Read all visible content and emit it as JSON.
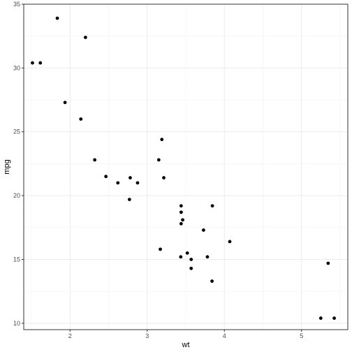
{
  "chart_data": {
    "type": "scatter",
    "title": "",
    "xlabel": "wt",
    "ylabel": "mpg",
    "xlim": [
      1.4,
      5.6
    ],
    "ylim": [
      9.5,
      35.0
    ],
    "x_ticks": [
      2,
      3,
      4,
      5
    ],
    "y_ticks": [
      10,
      15,
      20,
      25,
      30,
      35
    ],
    "grid": true,
    "legend": "none",
    "point_color": "#000000",
    "x": [
      2.62,
      2.875,
      2.32,
      3.215,
      3.44,
      3.46,
      3.57,
      3.19,
      3.15,
      3.44,
      3.44,
      4.07,
      3.73,
      3.78,
      5.25,
      5.424,
      5.345,
      2.2,
      1.615,
      1.835,
      2.465,
      3.52,
      3.435,
      3.84,
      3.845,
      1.935,
      2.14,
      1.513,
      3.17,
      2.77,
      3.57,
      2.78
    ],
    "y": [
      21.0,
      21.0,
      22.8,
      21.4,
      18.7,
      18.1,
      14.3,
      24.4,
      22.8,
      19.2,
      17.8,
      16.4,
      17.3,
      15.2,
      10.4,
      10.4,
      14.7,
      32.4,
      30.4,
      33.9,
      21.5,
      15.5,
      15.2,
      13.3,
      19.2,
      27.3,
      26.0,
      30.4,
      15.8,
      19.7,
      15.0,
      21.4
    ]
  }
}
